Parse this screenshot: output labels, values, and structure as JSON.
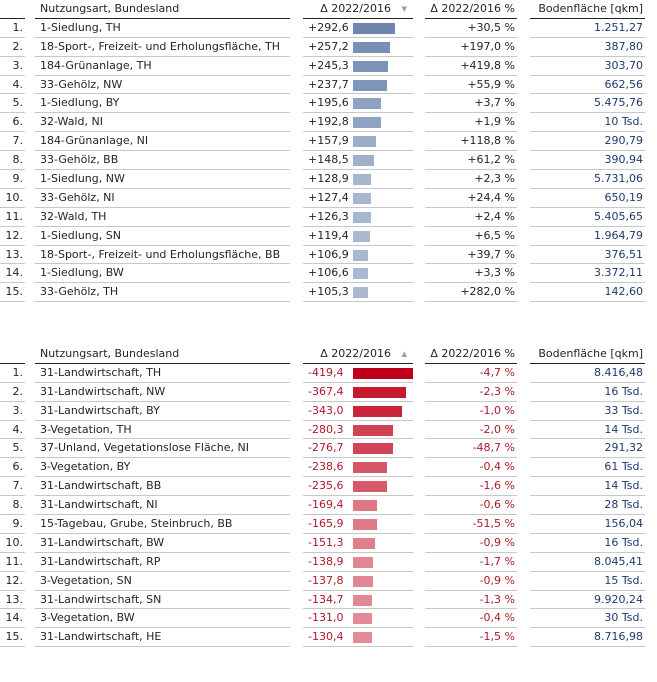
{
  "columns": {
    "name": "Nutzungsart, Bundesland",
    "delta": "Δ 2022/2016",
    "pct": "Δ 2022/2016 %",
    "area": "Bodenfläche [qkm]"
  },
  "sort_icons": {
    "top": "sort-descending-icon",
    "bottom": "sort-ascending-icon",
    "top_glyph": "▼",
    "bottom_glyph": "▲"
  },
  "colors": {
    "positive_bar": "#3f5f96",
    "negative_bar": "#c0001a",
    "negative_text": "#b0182a",
    "area_text": "#1f3a6e"
  },
  "top_table": {
    "rows": [
      {
        "rank": "1.",
        "name": "1-Siedlung, TH",
        "delta": "+292,6",
        "value": 292.6,
        "pct": "+30,5 %",
        "area": "1.251,27"
      },
      {
        "rank": "2.",
        "name": "18-Sport-, Freizeit- und Erholungsfläche, TH",
        "delta": "+257,2",
        "value": 257.2,
        "pct": "+197,0 %",
        "area": "387,80"
      },
      {
        "rank": "3.",
        "name": "184-Grünanlage, TH",
        "delta": "+245,3",
        "value": 245.3,
        "pct": "+419,8 %",
        "area": "303,70"
      },
      {
        "rank": "4.",
        "name": "33-Gehölz, NW",
        "delta": "+237,7",
        "value": 237.7,
        "pct": "+55,9 %",
        "area": "662,56"
      },
      {
        "rank": "5.",
        "name": "1-Siedlung, BY",
        "delta": "+195,6",
        "value": 195.6,
        "pct": "+3,7 %",
        "area": "5.475,76"
      },
      {
        "rank": "6.",
        "name": "32-Wald, NI",
        "delta": "+192,8",
        "value": 192.8,
        "pct": "+1,9 %",
        "area": "10 Tsd."
      },
      {
        "rank": "7.",
        "name": "184-Grünanlage, NI",
        "delta": "+157,9",
        "value": 157.9,
        "pct": "+118,8 %",
        "area": "290,79"
      },
      {
        "rank": "8.",
        "name": "33-Gehölz, BB",
        "delta": "+148,5",
        "value": 148.5,
        "pct": "+61,2 %",
        "area": "390,94"
      },
      {
        "rank": "9.",
        "name": "1-Siedlung, NW",
        "delta": "+128,9",
        "value": 128.9,
        "pct": "+2,3 %",
        "area": "5.731,06"
      },
      {
        "rank": "10.",
        "name": "33-Gehölz, NI",
        "delta": "+127,4",
        "value": 127.4,
        "pct": "+24,4 %",
        "area": "650,19"
      },
      {
        "rank": "11.",
        "name": "32-Wald, TH",
        "delta": "+126,3",
        "value": 126.3,
        "pct": "+2,4 %",
        "area": "5.405,65"
      },
      {
        "rank": "12.",
        "name": "1-Siedlung, SN",
        "delta": "+119,4",
        "value": 119.4,
        "pct": "+6,5 %",
        "area": "1.964,79"
      },
      {
        "rank": "13.",
        "name": "18-Sport-, Freizeit- und Erholungsfläche, BB",
        "delta": "+106,9",
        "value": 106.9,
        "pct": "+39,7 %",
        "area": "376,51"
      },
      {
        "rank": "14.",
        "name": "1-Siedlung, BW",
        "delta": "+106,6",
        "value": 106.6,
        "pct": "+3,3 %",
        "area": "3.372,11"
      },
      {
        "rank": "15.",
        "name": "33-Gehölz, TH",
        "delta": "+105,3",
        "value": 105.3,
        "pct": "+282,0 %",
        "area": "142,60"
      }
    ]
  },
  "bottom_table": {
    "rows": [
      {
        "rank": "1.",
        "name": "31-Landwirtschaft, TH",
        "delta": "-419,4",
        "value": -419.4,
        "pct": "-4,7 %",
        "area": "8.416,48"
      },
      {
        "rank": "2.",
        "name": "31-Landwirtschaft, NW",
        "delta": "-367,4",
        "value": -367.4,
        "pct": "-2,3 %",
        "area": "16 Tsd."
      },
      {
        "rank": "3.",
        "name": "31-Landwirtschaft, BY",
        "delta": "-343,0",
        "value": -343.0,
        "pct": "-1,0 %",
        "area": "33 Tsd."
      },
      {
        "rank": "4.",
        "name": "3-Vegetation, TH",
        "delta": "-280,3",
        "value": -280.3,
        "pct": "-2,0 %",
        "area": "14 Tsd."
      },
      {
        "rank": "5.",
        "name": "37-Unland, Vegetationslose Fläche, NI",
        "delta": "-276,7",
        "value": -276.7,
        "pct": "-48,7 %",
        "area": "291,32"
      },
      {
        "rank": "6.",
        "name": "3-Vegetation, BY",
        "delta": "-238,6",
        "value": -238.6,
        "pct": "-0,4 %",
        "area": "61 Tsd."
      },
      {
        "rank": "7.",
        "name": "31-Landwirtschaft, BB",
        "delta": "-235,6",
        "value": -235.6,
        "pct": "-1,6 %",
        "area": "14 Tsd."
      },
      {
        "rank": "8.",
        "name": "31-Landwirtschaft, NI",
        "delta": "-169,4",
        "value": -169.4,
        "pct": "-0,6 %",
        "area": "28 Tsd."
      },
      {
        "rank": "9.",
        "name": "15-Tagebau, Grube, Steinbruch, BB",
        "delta": "-165,9",
        "value": -165.9,
        "pct": "-51,5 %",
        "area": "156,04"
      },
      {
        "rank": "10.",
        "name": "31-Landwirtschaft, BW",
        "delta": "-151,3",
        "value": -151.3,
        "pct": "-0,9 %",
        "area": "16 Tsd."
      },
      {
        "rank": "11.",
        "name": "31-Landwirtschaft, RP",
        "delta": "-138,9",
        "value": -138.9,
        "pct": "-1,7 %",
        "area": "8.045,41"
      },
      {
        "rank": "12.",
        "name": "3-Vegetation, SN",
        "delta": "-137,8",
        "value": -137.8,
        "pct": "-0,9 %",
        "area": "15 Tsd."
      },
      {
        "rank": "13.",
        "name": "31-Landwirtschaft, SN",
        "delta": "-134,7",
        "value": -134.7,
        "pct": "-1,3 %",
        "area": "9.920,24"
      },
      {
        "rank": "14.",
        "name": "3-Vegetation, BW",
        "delta": "-131,0",
        "value": -131.0,
        "pct": "-0,4 %",
        "area": "30 Tsd."
      },
      {
        "rank": "15.",
        "name": "31-Landwirtschaft, HE",
        "delta": "-130,4",
        "value": -130.4,
        "pct": "-1,5 %",
        "area": "8.716,98"
      }
    ]
  }
}
